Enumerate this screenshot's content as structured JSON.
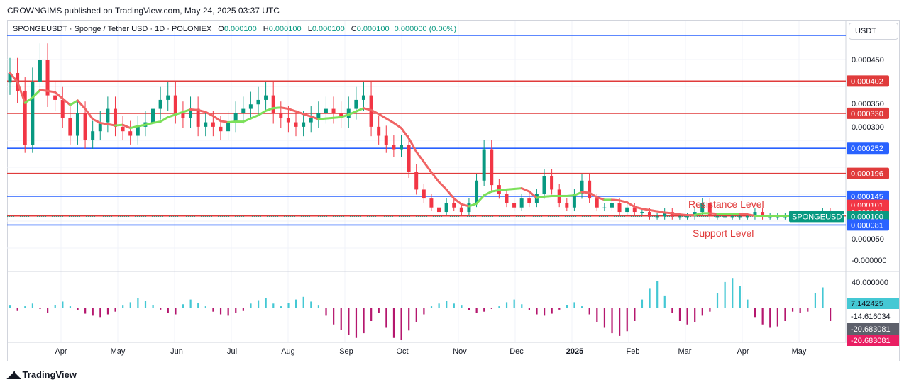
{
  "header": {
    "publisher": "CROWNGIMS published on TradingView.com, May 24, 2025 03:37 UTC"
  },
  "legend": {
    "symbol": "SPONGEUSDT · Sponge / Tether USD · 1D · POLONIEX",
    "open_label": "O",
    "open": "0.000100",
    "high_label": "H",
    "high": "0.000100",
    "low_label": "L",
    "low": "0.000100",
    "close_label": "C",
    "close": "0.000100",
    "change": "0.000000 (0.00%)"
  },
  "currency": "USDT",
  "footer": {
    "brand": "TradingView"
  },
  "annotations": {
    "resistance": "Resistance Level",
    "support": "Support Level"
  },
  "colors": {
    "up": "#089981",
    "down": "#f23645",
    "red_line": "#e03b3b",
    "blue_line": "#2962ff",
    "ma_down": "#f06464",
    "ma_up": "#7ce05a",
    "osc_pos": "#44c8d4",
    "osc_neg": "#b5176e"
  },
  "chart_data": {
    "type": "candlestick",
    "symbol": "SPONGEUSDT",
    "x_tick_labels": [
      "Apr",
      "May",
      "Jun",
      "Jul",
      "Aug",
      "Sep",
      "Oct",
      "Nov",
      "Dec",
      "2025",
      "Feb",
      "Mar",
      "Apr",
      "May"
    ],
    "y_tick_labels": [
      "0.000450",
      "0.000350",
      "0.000300",
      "0.000050",
      "-0.000000"
    ],
    "ylim": [
      -2e-05,
      0.0005
    ],
    "levels": [
      {
        "label": "0.000402",
        "value": 0.000402,
        "kind": "resistance",
        "color": "#e03b3b"
      },
      {
        "label": "0.000330",
        "value": 0.00033,
        "kind": "resistance",
        "color": "#e03b3b"
      },
      {
        "label": "0.000252",
        "value": 0.000252,
        "kind": "support",
        "color": "#2962ff"
      },
      {
        "label": "0.000196",
        "value": 0.000196,
        "kind": "resistance",
        "color": "#e03b3b"
      },
      {
        "label": "0.000145",
        "value": 0.000145,
        "kind": "support",
        "color": "#2962ff"
      },
      {
        "label": "0.000101",
        "value": 0.000101,
        "kind": "resistance",
        "color": "#e03b3b"
      },
      {
        "label": "0.000081",
        "value": 8.1e-05,
        "kind": "support",
        "color": "#2962ff"
      },
      {
        "label": "0.000490",
        "value": 0.00049,
        "kind": "support",
        "color": "#2962ff"
      }
    ],
    "price_tags": [
      {
        "label": "0.000402",
        "value": 0.000402,
        "color": "#e03b3b"
      },
      {
        "label": "0.000330",
        "value": 0.00033,
        "color": "#e03b3b"
      },
      {
        "label": "0.000252",
        "value": 0.000252,
        "color": "#2962ff"
      },
      {
        "label": "0.000196",
        "value": 0.000196,
        "color": "#e03b3b"
      },
      {
        "label": "0.000145",
        "value": 0.000145,
        "color": "#2962ff"
      },
      {
        "label": "0.000101",
        "value": 0.000125,
        "color": "#f23645"
      },
      {
        "label": "0.000101",
        "value": 0.000109,
        "color": "#f23645"
      },
      {
        "label": "0.000100",
        "value": 0.0001,
        "color": "#089981"
      },
      {
        "label": "0.000081",
        "value": 8.1e-05,
        "color": "#2962ff"
      }
    ],
    "symbol_tag": "SPONGEUSDT",
    "closes": [
      0.00042,
      0.00038,
      0.00026,
      0.0004,
      0.00045,
      0.00037,
      0.00036,
      0.00032,
      0.00028,
      0.00033,
      0.00027,
      0.00029,
      0.00031,
      0.00034,
      0.0003,
      0.00029,
      0.00028,
      0.0003,
      0.00031,
      0.00034,
      0.00036,
      0.00037,
      0.00033,
      0.00032,
      0.00034,
      0.0003,
      0.00031,
      0.0003,
      0.00029,
      0.00031,
      0.00033,
      0.00034,
      0.00035,
      0.00036,
      0.00037,
      0.00033,
      0.00032,
      0.00031,
      0.0003,
      0.00031,
      0.00032,
      0.00033,
      0.00034,
      0.00033,
      0.00032,
      0.00034,
      0.00036,
      0.00037,
      0.0003,
      0.00028,
      0.00026,
      0.00025,
      0.00026,
      0.0002,
      0.00016,
      0.00014,
      0.00012,
      0.00011,
      0.00013,
      0.00012,
      0.00011,
      0.00013,
      0.00018,
      0.00025,
      0.00017,
      0.00015,
      0.00013,
      0.00012,
      0.00014,
      0.00013,
      0.00015,
      0.00019,
      0.00016,
      0.00013,
      0.00012,
      0.00015,
      0.00018,
      0.00014,
      0.00012,
      0.00012,
      0.00013,
      0.00011,
      0.00012,
      0.00011,
      0.00011,
      0.0001,
      0.0001,
      0.00011,
      0.0001,
      0.0001,
      0.0001,
      0.00011,
      0.00013,
      0.0001,
      0.0001,
      0.0001,
      0.0001,
      0.0001,
      0.0001,
      0.00011,
      0.0001,
      0.0001,
      0.0001,
      0.0001,
      0.0001,
      0.0001,
      0.0001,
      0.0001,
      0.00011,
      0.0001
    ],
    "oscillator": {
      "name": "",
      "y_tick_labels": [
        "40.000000"
      ],
      "tags": [
        {
          "label": "7.142425",
          "color": "#44c8d4",
          "text": "#131722"
        },
        {
          "label": "-14.616034",
          "color": "#ffffff",
          "text": "#131722"
        },
        {
          "label": "-20.683081",
          "color": "#5d606b",
          "text": "#ffffff"
        },
        {
          "label": "-20.683081",
          "color": "#e91e63",
          "text": "#ffffff"
        }
      ],
      "values": [
        3,
        -5,
        2,
        6,
        -2,
        -8,
        4,
        9,
        2,
        -4,
        -9,
        -12,
        -14,
        -10,
        -6,
        3,
        8,
        14,
        10,
        4,
        -3,
        -8,
        -10,
        5,
        12,
        7,
        2,
        -6,
        -10,
        -12,
        -8,
        -5,
        6,
        11,
        14,
        6,
        2,
        7,
        12,
        16,
        9,
        3,
        -12,
        -25,
        -33,
        -40,
        -45,
        -38,
        -20,
        -8,
        -30,
        -45,
        -48,
        -34,
        -22,
        -10,
        2,
        6,
        10,
        6,
        3,
        -4,
        -8,
        -6,
        -2,
        2,
        8,
        12,
        5,
        -4,
        -10,
        -12,
        -9,
        -3,
        4,
        8,
        2,
        -10,
        -22,
        -30,
        -38,
        -42,
        -35,
        -20,
        12,
        28,
        40,
        18,
        -8,
        -20,
        -25,
        -22,
        -12,
        -6,
        22,
        38,
        44,
        32,
        12,
        -14,
        -25,
        -30,
        -28,
        -20,
        -6,
        -8,
        -6,
        22,
        30,
        -20
      ]
    }
  }
}
